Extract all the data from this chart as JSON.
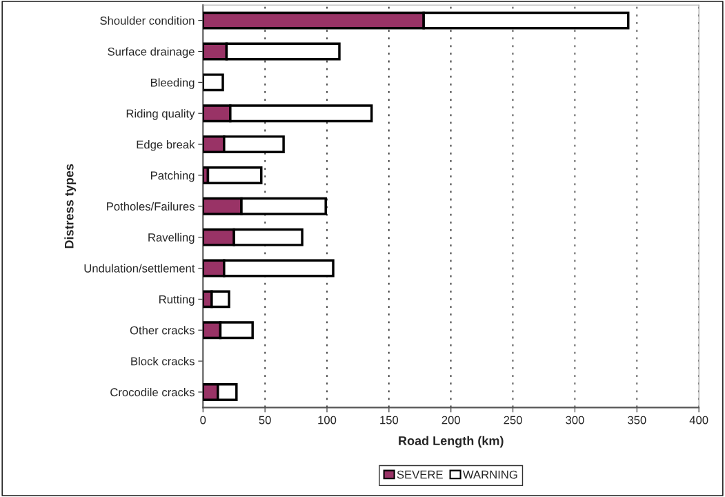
{
  "chart_data": {
    "type": "bar",
    "orientation": "horizontal",
    "stacked": true,
    "xlabel": "Road Length (km)",
    "ylabel": "Distress types",
    "categories": [
      "Shoulder condition",
      "Surface drainage",
      "Bleeding",
      "Riding quality",
      "Edge break",
      "Patching",
      "Potholes/Failures",
      "Ravelling",
      "Undulation/settlement",
      "Rutting",
      "Other cracks",
      "Block cracks",
      "Crocodile cracks"
    ],
    "series": [
      {
        "name": "SEVERE",
        "color": "#993366",
        "values": [
          178,
          19,
          0,
          22,
          17,
          4,
          31,
          25,
          17,
          7,
          14,
          0,
          12
        ]
      },
      {
        "name": "WARNING",
        "color": "#ffffff",
        "values": [
          165,
          91,
          16,
          114,
          48,
          43,
          68,
          55,
          88,
          14,
          26,
          0,
          15
        ]
      }
    ],
    "xlim": [
      0,
      400
    ],
    "xticks": [
      0,
      50,
      100,
      150,
      200,
      250,
      300,
      350,
      400
    ],
    "grid": "x",
    "legend": "bottom"
  }
}
